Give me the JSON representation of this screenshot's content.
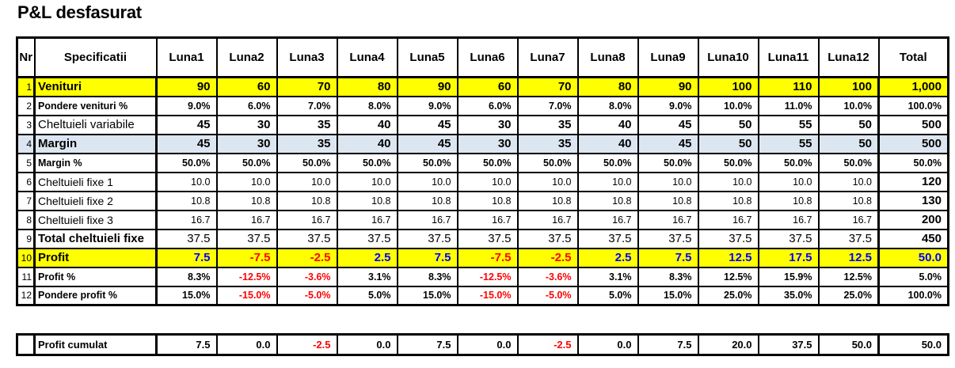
{
  "title": "P&L desfasurat",
  "colors": {
    "highlight_yellow": "#FFFF00",
    "highlight_blue": "#DCE6F1",
    "positive_blue": "#0000FF",
    "negative_red": "#FF0000",
    "text_black": "#000000",
    "border_black": "#000000"
  },
  "table": {
    "headers": [
      "Nr",
      "Specificatii",
      "Luna1",
      "Luna2",
      "Luna3",
      "Luna4",
      "Luna5",
      "Luna6",
      "Luna7",
      "Luna8",
      "Luna9",
      "Luna10",
      "Luna11",
      "Luna12",
      "Total"
    ],
    "rows": [
      {
        "nr": "1",
        "label": "Venituri",
        "values": [
          "90",
          "60",
          "70",
          "80",
          "90",
          "60",
          "70",
          "80",
          "90",
          "100",
          "110",
          "100"
        ],
        "total": "1,000",
        "bg": "yellow",
        "label_style": "bold-lg",
        "num_style": "bold-lg",
        "total_style": "bold-lg"
      },
      {
        "nr": "2",
        "label": "Pondere venituri %",
        "values": [
          "9.0%",
          "6.0%",
          "7.0%",
          "8.0%",
          "9.0%",
          "6.0%",
          "7.0%",
          "8.0%",
          "9.0%",
          "10.0%",
          "11.0%",
          "10.0%"
        ],
        "total": "100.0%",
        "bg": "",
        "label_style": "bold-sm",
        "num_style": "bold-sm",
        "total_style": "bold-sm"
      },
      {
        "nr": "3",
        "label": "Cheltuieli variabile",
        "values": [
          "45",
          "30",
          "35",
          "40",
          "45",
          "30",
          "35",
          "40",
          "45",
          "50",
          "55",
          "50"
        ],
        "total": "500",
        "bg": "",
        "label_style": "reg-lg",
        "num_style": "bold-lg",
        "total_style": "bold-lg"
      },
      {
        "nr": "4",
        "label": "Margin",
        "values": [
          "45",
          "30",
          "35",
          "40",
          "45",
          "30",
          "35",
          "40",
          "45",
          "50",
          "55",
          "50"
        ],
        "total": "500",
        "bg": "blue",
        "label_style": "bold-lg",
        "num_style": "bold-lg",
        "total_style": "bold-lg"
      },
      {
        "nr": "5",
        "label": "Margin %",
        "values": [
          "50.0%",
          "50.0%",
          "50.0%",
          "50.0%",
          "50.0%",
          "50.0%",
          "50.0%",
          "50.0%",
          "50.0%",
          "50.0%",
          "50.0%",
          "50.0%"
        ],
        "total": "50.0%",
        "bg": "",
        "label_style": "bold-sm",
        "num_style": "bold-sm",
        "total_style": "bold-sm"
      },
      {
        "nr": "6",
        "label": "Cheltuieli fixe 1",
        "values": [
          "10.0",
          "10.0",
          "10.0",
          "10.0",
          "10.0",
          "10.0",
          "10.0",
          "10.0",
          "10.0",
          "10.0",
          "10.0",
          "10.0"
        ],
        "total": "120",
        "bg": "",
        "label_style": "reg-md",
        "num_style": "reg-sm",
        "total_style": "bold-lg"
      },
      {
        "nr": "7",
        "label": "Cheltuieli fixe 2",
        "values": [
          "10.8",
          "10.8",
          "10.8",
          "10.8",
          "10.8",
          "10.8",
          "10.8",
          "10.8",
          "10.8",
          "10.8",
          "10.8",
          "10.8"
        ],
        "total": "130",
        "bg": "",
        "label_style": "reg-md",
        "num_style": "reg-sm",
        "total_style": "bold-lg"
      },
      {
        "nr": "8",
        "label": "Cheltuieli fixe 3",
        "values": [
          "16.7",
          "16.7",
          "16.7",
          "16.7",
          "16.7",
          "16.7",
          "16.7",
          "16.7",
          "16.7",
          "16.7",
          "16.7",
          "16.7"
        ],
        "total": "200",
        "bg": "",
        "label_style": "reg-md",
        "num_style": "reg-sm",
        "total_style": "bold-lg"
      },
      {
        "nr": "9",
        "label": "Total cheltuieli fixe",
        "values": [
          "37.5",
          "37.5",
          "37.5",
          "37.5",
          "37.5",
          "37.5",
          "37.5",
          "37.5",
          "37.5",
          "37.5",
          "37.5",
          "37.5"
        ],
        "total": "450",
        "bg": "",
        "label_style": "bold-lg",
        "num_style": "reg-lg",
        "total_style": "bold-lg"
      },
      {
        "nr": "10",
        "label": "Profit",
        "values": [
          "7.5",
          "-7.5",
          "-2.5",
          "2.5",
          "7.5",
          "-7.5",
          "-2.5",
          "2.5",
          "7.5",
          "12.5",
          "17.5",
          "12.5"
        ],
        "total": "50.0",
        "bg": "yellow",
        "label_style": "bold-lg",
        "num_style": "bold-lg",
        "total_style": "bold-lg",
        "positive_color": "#0000FF"
      },
      {
        "nr": "11",
        "label": "Profit %",
        "values": [
          "8.3%",
          "-12.5%",
          "-3.6%",
          "3.1%",
          "8.3%",
          "-12.5%",
          "-3.6%",
          "3.1%",
          "8.3%",
          "12.5%",
          "15.9%",
          "12.5%"
        ],
        "total": "5.0%",
        "bg": "",
        "label_style": "bold-sm",
        "num_style": "bold-sm",
        "total_style": "bold-sm"
      },
      {
        "nr": "12",
        "label": "Pondere profit %",
        "values": [
          "15.0%",
          "-15.0%",
          "-5.0%",
          "5.0%",
          "15.0%",
          "-15.0%",
          "-5.0%",
          "5.0%",
          "15.0%",
          "25.0%",
          "35.0%",
          "25.0%"
        ],
        "total": "100.0%",
        "bg": "",
        "label_style": "bold-sm",
        "num_style": "bold-sm",
        "total_style": "bold-sm"
      }
    ]
  },
  "footer": {
    "nr": "",
    "label": "Profit cumulat",
    "values": [
      "7.5",
      "0.0",
      "-2.5",
      "0.0",
      "7.5",
      "0.0",
      "-2.5",
      "0.0",
      "7.5",
      "20.0",
      "37.5",
      "50.0"
    ],
    "total": "50.0",
    "label_style": "bold-md",
    "num_style": "bold-md"
  }
}
